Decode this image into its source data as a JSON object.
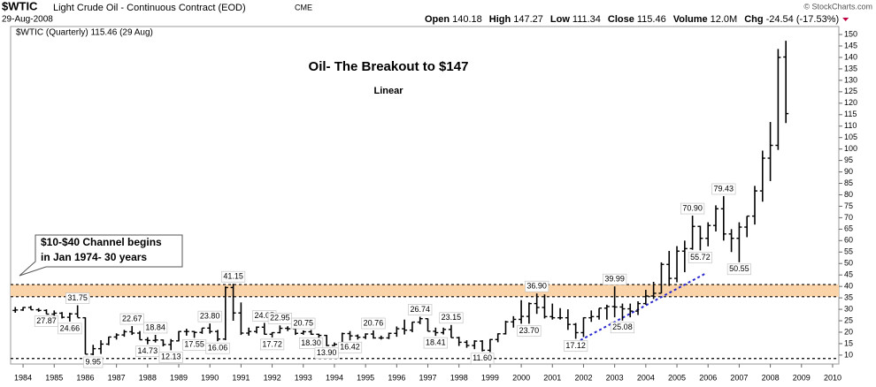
{
  "header": {
    "symbol": "$WTIC",
    "name": "Light Crude Oil - Continuous Contract (EOD)",
    "exchange": "CME",
    "date": "29-Aug-2008",
    "quote": [
      {
        "label": "Open",
        "value": "140.18"
      },
      {
        "label": "High",
        "value": "147.27"
      },
      {
        "label": "Low",
        "value": "111.34"
      },
      {
        "label": "Close",
        "value": "115.46"
      },
      {
        "label": "Volume",
        "value": "12.0M"
      },
      {
        "label": "Chg",
        "value": "-24.54 (-17.53%)"
      }
    ],
    "copyright": "© StockCharts.com"
  },
  "chart_data": {
    "type": "ohlc",
    "legend": "$WTIC (Quarterly) 115.46 (29 Aug)",
    "title": "Oil- The Breakout to $147",
    "subtitle": "Linear",
    "annotation": [
      "$10-$40 Channel begins",
      "in Jan 1974- 30 years"
    ],
    "color": "#000000",
    "x": [
      1983.75,
      1984,
      1984.25,
      1984.5,
      1984.75,
      1985,
      1985.25,
      1985.5,
      1985.75,
      1986,
      1986.25,
      1986.5,
      1986.75,
      1987,
      1987.25,
      1987.5,
      1987.75,
      1988,
      1988.25,
      1988.5,
      1988.75,
      1989,
      1989.25,
      1989.5,
      1989.75,
      1990,
      1990.25,
      1990.5,
      1990.75,
      1991,
      1991.25,
      1991.5,
      1991.75,
      1992,
      1992.25,
      1992.5,
      1992.75,
      1993,
      1993.25,
      1993.5,
      1993.75,
      1994,
      1994.25,
      1994.5,
      1994.75,
      1995,
      1995.25,
      1995.5,
      1995.75,
      1996,
      1996.25,
      1996.5,
      1996.75,
      1997,
      1997.25,
      1997.5,
      1997.75,
      1998,
      1998.25,
      1998.5,
      1998.75,
      1999,
      1999.25,
      1999.5,
      1999.75,
      2000,
      2000.25,
      2000.5,
      2000.75,
      2001,
      2001.25,
      2001.5,
      2001.75,
      2002,
      2002.25,
      2002.5,
      2002.75,
      2003,
      2003.25,
      2003.5,
      2003.75,
      2004,
      2004.25,
      2004.5,
      2004.75,
      2005,
      2005.25,
      2005.5,
      2005.75,
      2006,
      2006.25,
      2006.5,
      2006.75,
      2007,
      2007.25,
      2007.5,
      2007.75,
      2008,
      2008.25,
      2008.5
    ],
    "open": [
      29.5,
      29.7,
      30.8,
      29.8,
      29.5,
      27.9,
      28.3,
      26.5,
      28,
      26.3,
      10.4,
      12.8,
      14.8,
      17.9,
      18.8,
      20.2,
      19.6,
      16.7,
      16.4,
      16.6,
      14.6,
      16.2,
      20.3,
      20.3,
      19.9,
      21.8,
      20.3,
      17,
      39.5,
      28.4,
      19.6,
      20.3,
      22.2,
      19.1,
      19.8,
      21.7,
      21.5,
      19.5,
      20.2,
      19.1,
      18.6,
      14.2,
      14.7,
      19.4,
      18.4,
      17.8,
      19.2,
      17.5,
      17.5,
      19.5,
      21.5,
      20.9,
      24.4,
      25.9,
      20.4,
      19.8,
      21.2,
      17.6,
      15.6,
      14.2,
      16.1,
      12.1,
      16.8,
      19.3,
      24.5,
      25.6,
      26.9,
      32.5,
      30.8,
      26.8,
      26.3,
      26.3,
      23.4,
      19.8,
      26.3,
      26.8,
      30.5,
      31.2,
      31,
      30.2,
      29.2,
      32.5,
      35.8,
      37,
      49.6,
      43.5,
      55.4,
      56.5,
      66.2,
      61,
      66.6,
      73.9,
      62.9,
      61,
      65.9,
      70.7,
      81.7,
      96,
      101.6,
      140.18
    ],
    "high": [
      31,
      31,
      31.5,
      30.5,
      30,
      29.5,
      28.8,
      28.5,
      31.75,
      26.5,
      14.5,
      16.5,
      18,
      19.5,
      21,
      22.67,
      20.5,
      17.8,
      18.84,
      16.8,
      17,
      20.5,
      21.5,
      20.5,
      21.8,
      23.8,
      21,
      40,
      41.15,
      33,
      22,
      22.5,
      24.05,
      20,
      22.95,
      22.6,
      21.8,
      20.75,
      21,
      19.3,
      18.8,
      15.5,
      19.8,
      20.5,
      19,
      19.5,
      20.76,
      18.5,
      19.8,
      22.5,
      25.5,
      24.5,
      26.74,
      26,
      22,
      22,
      23.15,
      18,
      16.5,
      16.5,
      16.5,
      17,
      19.5,
      25,
      27,
      34,
      33,
      36.9,
      36.5,
      32.5,
      30.5,
      30,
      24,
      26.5,
      29.5,
      30.5,
      32,
      39.99,
      32.5,
      32.5,
      33.5,
      38.5,
      42,
      50.5,
      55.5,
      57.6,
      60,
      70.9,
      66.5,
      68,
      75.4,
      79.43,
      65,
      68,
      70.7,
      83.9,
      99.3,
      111.8,
      143.7,
      147.27
    ],
    "low": [
      28.5,
      29.3,
      29.8,
      28.9,
      27.87,
      25,
      26,
      24.66,
      26.5,
      10.4,
      9.95,
      10.5,
      14.3,
      16.8,
      18,
      18.8,
      16.7,
      14.73,
      15.5,
      13.8,
      12.13,
      16,
      18.5,
      17.55,
      19.3,
      19.4,
      16.06,
      16.5,
      25,
      18.8,
      18.5,
      19.5,
      19,
      17.72,
      19.5,
      20.5,
      18.8,
      18.9,
      18.9,
      17.2,
      13.9,
      13.9,
      14.5,
      16.42,
      16.8,
      17,
      17.2,
      16.8,
      17,
      18,
      19,
      20,
      23.5,
      20.4,
      18.41,
      19,
      17.6,
      14,
      13.2,
      12.6,
      11.6,
      11.3,
      15.6,
      19,
      22,
      23.7,
      23.7,
      28,
      26,
      25.5,
      25.5,
      21,
      17.12,
      17.9,
      24.5,
      25.5,
      25.5,
      26.5,
      25.08,
      26.5,
      27.5,
      32,
      34.5,
      37,
      40.2,
      41.8,
      46.2,
      56,
      55.72,
      57.5,
      64,
      60,
      55,
      50.55,
      61.5,
      67,
      77,
      86,
      99.6,
      111.34
    ],
    "close": [
      29.7,
      30.8,
      29.8,
      29.5,
      27.9,
      28.3,
      26.5,
      28,
      26.3,
      10.4,
      12.8,
      14.8,
      17.9,
      18.8,
      20.2,
      19.6,
      16.7,
      16.4,
      16.6,
      14.6,
      16.2,
      20.3,
      20.3,
      19.9,
      21.8,
      20.3,
      17,
      39.5,
      28.4,
      19.6,
      20.3,
      22.2,
      19.1,
      19.8,
      21.7,
      21.5,
      19.5,
      20.2,
      19.1,
      18.6,
      14.2,
      14.7,
      19.4,
      18.4,
      17.8,
      19.2,
      17.5,
      17.5,
      19.5,
      21.5,
      20.9,
      24.4,
      25.9,
      20.4,
      19.8,
      21.2,
      17.6,
      15.6,
      14.2,
      16.1,
      12.1,
      16.8,
      19.3,
      24.5,
      25.6,
      26.9,
      32.5,
      30.8,
      26.8,
      26.3,
      26.3,
      23.4,
      19.8,
      26.3,
      26.8,
      30.5,
      31.2,
      31,
      30.2,
      29.2,
      32.5,
      35.8,
      37,
      49.6,
      43.5,
      55.4,
      56.5,
      66.2,
      61,
      66.6,
      73.9,
      62.9,
      61,
      65.9,
      70.7,
      81.7,
      96,
      101.6,
      140,
      115.46
    ],
    "price_labels": [
      {
        "label": "27.87",
        "value": 27.87,
        "x": 1984.75
      },
      {
        "label": "24.66",
        "value": 24.66,
        "x": 1985.5
      },
      {
        "label": "31.75",
        "value": 31.75,
        "x": 1985.75
      },
      {
        "label": "9.95",
        "value": 9.95,
        "x": 1986.25
      },
      {
        "label": "22.67",
        "value": 22.67,
        "x": 1987.5
      },
      {
        "label": "14.73",
        "value": 14.73,
        "x": 1988
      },
      {
        "label": "18.84",
        "value": 18.84,
        "x": 1988.25
      },
      {
        "label": "12.13",
        "value": 12.13,
        "x": 1988.75
      },
      {
        "label": "17.55",
        "value": 17.55,
        "x": 1989.5
      },
      {
        "label": "23.80",
        "value": 23.8,
        "x": 1990
      },
      {
        "label": "16.06",
        "value": 16.06,
        "x": 1990.25
      },
      {
        "label": "41.15",
        "value": 41.15,
        "x": 1990.75
      },
      {
        "label": "24.05",
        "value": 24.05,
        "x": 1991.75
      },
      {
        "label": "17.72",
        "value": 17.72,
        "x": 1992
      },
      {
        "label": "22.95",
        "value": 22.95,
        "x": 1992.25
      },
      {
        "label": "20.75",
        "value": 20.75,
        "x": 1993
      },
      {
        "label": "18.30",
        "value": 18.3,
        "x": 1993.25
      },
      {
        "label": "13.90",
        "value": 13.9,
        "x": 1993.75
      },
      {
        "label": "16.42",
        "value": 16.42,
        "x": 1994.5
      },
      {
        "label": "20.76",
        "value": 20.76,
        "x": 1995.25
      },
      {
        "label": "26.74",
        "value": 26.74,
        "x": 1996.75
      },
      {
        "label": "18.41",
        "value": 18.41,
        "x": 1997.25
      },
      {
        "label": "23.15",
        "value": 23.15,
        "x": 1997.75
      },
      {
        "label": "11.60",
        "value": 11.6,
        "x": 1998.75
      },
      {
        "label": "23.70",
        "value": 23.7,
        "x": 2000.25
      },
      {
        "label": "36.90",
        "value": 36.9,
        "x": 2000.5
      },
      {
        "label": "17.12",
        "value": 17.12,
        "x": 2001.75
      },
      {
        "label": "39.99",
        "value": 39.99,
        "x": 2003
      },
      {
        "label": "25.08",
        "value": 25.08,
        "x": 2003.25
      },
      {
        "label": "70.90",
        "value": 70.9,
        "x": 2005.5
      },
      {
        "label": "55.72",
        "value": 55.72,
        "x": 2005.75
      },
      {
        "label": "79.43",
        "value": 79.43,
        "x": 2006.5
      },
      {
        "label": "50.55",
        "value": 50.55,
        "x": 2007
      }
    ],
    "band": [
      35.5,
      40.8
    ],
    "band_color": "#fbd3a8",
    "hlines": [
      8.5,
      35.5,
      40.8
    ],
    "trendline": {
      "x": [
        2001.9,
        2005.9
      ],
      "y": [
        16.5,
        45.5
      ],
      "color": "#2a2ad0"
    },
    "xlim": [
      1983.6,
      2010.2
    ],
    "xticks": [
      1984,
      1985,
      1986,
      1987,
      1988,
      1989,
      1990,
      1991,
      1992,
      1993,
      1994,
      1995,
      1996,
      1997,
      1998,
      1999,
      2000,
      2001,
      2002,
      2003,
      2004,
      2005,
      2006,
      2007,
      2008,
      2009,
      2010
    ],
    "ylim": [
      6.1,
      153.5
    ],
    "yticks": [
      10,
      15,
      20,
      25,
      30,
      35,
      40,
      45,
      50,
      55,
      60,
      65,
      70,
      75,
      80,
      85,
      90,
      95,
      100,
      105,
      110,
      115,
      120,
      125,
      130,
      135,
      140,
      145,
      150
    ],
    "grid": false
  }
}
